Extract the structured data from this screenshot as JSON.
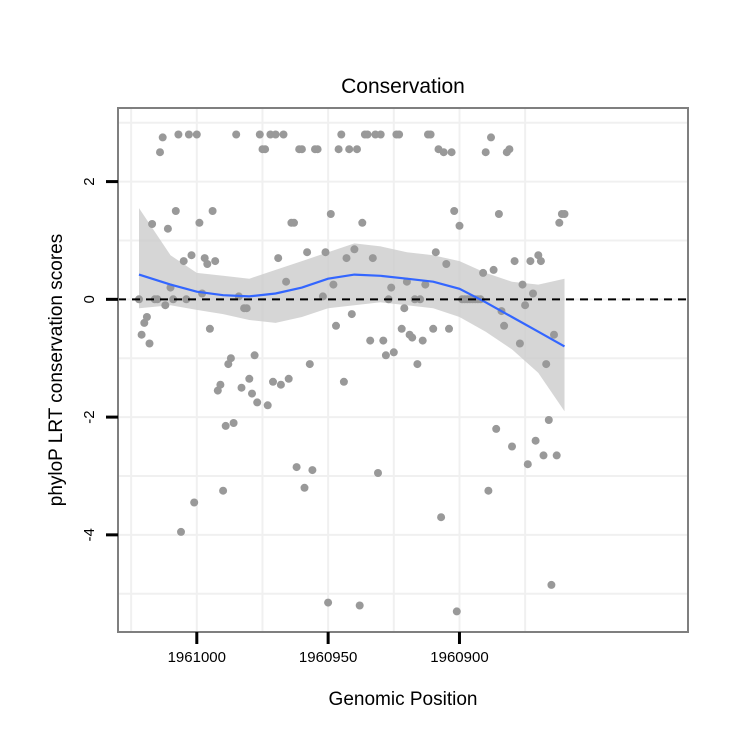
{
  "chart_data": {
    "type": "scatter",
    "title": "Conservation",
    "xlabel": "Genomic Position",
    "ylabel": "phyloP LRT conservation scores",
    "x_reversed": true,
    "xlim": [
      1961030,
      1960813
    ],
    "ylim": [
      -5.65,
      3.25
    ],
    "xticks": [
      1961000,
      1960950,
      1960900
    ],
    "xtick_labels": [
      "1961000",
      "1960950",
      "1960900"
    ],
    "yticks": [
      2,
      0,
      -2,
      -4
    ],
    "ytick_labels": [
      "2",
      "0",
      "-2",
      "-4"
    ],
    "grid": true,
    "legend": "none",
    "reference_line": {
      "y": 0,
      "style": "dashed",
      "color": "#000000"
    },
    "colors": {
      "points": "#999999",
      "smooth_line": "#3366ff",
      "confidence_band": "#cccccc",
      "panel_border": "#7f7f7f",
      "grid": "#f0f0f0"
    },
    "points": [
      {
        "x": 1961022,
        "y": 0.0
      },
      {
        "x": 1961021,
        "y": -0.6
      },
      {
        "x": 1961020,
        "y": -0.4
      },
      {
        "x": 1961019,
        "y": -0.3
      },
      {
        "x": 1961018,
        "y": -0.75
      },
      {
        "x": 1961017,
        "y": 1.28
      },
      {
        "x": 1961016,
        "y": 0.0
      },
      {
        "x": 1961015,
        "y": 0.0
      },
      {
        "x": 1961014,
        "y": 2.5
      },
      {
        "x": 1961013,
        "y": 2.75
      },
      {
        "x": 1961012,
        "y": -0.1
      },
      {
        "x": 1961011,
        "y": 1.2
      },
      {
        "x": 1961010,
        "y": 0.2
      },
      {
        "x": 1961009,
        "y": 0.0
      },
      {
        "x": 1961008,
        "y": 1.5
      },
      {
        "x": 1961007,
        "y": 2.8
      },
      {
        "x": 1961006,
        "y": -3.95
      },
      {
        "x": 1961005,
        "y": 0.65
      },
      {
        "x": 1961004,
        "y": 0.0
      },
      {
        "x": 1961003,
        "y": 2.8
      },
      {
        "x": 1961002,
        "y": 0.75
      },
      {
        "x": 1961001,
        "y": -3.45
      },
      {
        "x": 1961000,
        "y": 2.8
      },
      {
        "x": 1960999,
        "y": 1.3
      },
      {
        "x": 1960998,
        "y": 0.1
      },
      {
        "x": 1960997,
        "y": 0.7
      },
      {
        "x": 1960996,
        "y": 0.6
      },
      {
        "x": 1960995,
        "y": -0.5
      },
      {
        "x": 1960994,
        "y": 1.5
      },
      {
        "x": 1960993,
        "y": 0.65
      },
      {
        "x": 1960992,
        "y": -1.55
      },
      {
        "x": 1960991,
        "y": -1.45
      },
      {
        "x": 1960990,
        "y": -3.25
      },
      {
        "x": 1960989,
        "y": -2.15
      },
      {
        "x": 1960988,
        "y": -1.1
      },
      {
        "x": 1960987,
        "y": -1.0
      },
      {
        "x": 1960986,
        "y": -2.1
      },
      {
        "x": 1960985,
        "y": 2.8
      },
      {
        "x": 1960984,
        "y": 0.05
      },
      {
        "x": 1960983,
        "y": -1.5
      },
      {
        "x": 1960982,
        "y": -0.15
      },
      {
        "x": 1960981,
        "y": -0.15
      },
      {
        "x": 1960980,
        "y": -1.35
      },
      {
        "x": 1960979,
        "y": -1.6
      },
      {
        "x": 1960978,
        "y": -0.95
      },
      {
        "x": 1960977,
        "y": -1.75
      },
      {
        "x": 1960976,
        "y": 2.8
      },
      {
        "x": 1960975,
        "y": 2.55
      },
      {
        "x": 1960974,
        "y": 2.55
      },
      {
        "x": 1960973,
        "y": -1.8
      },
      {
        "x": 1960972,
        "y": 2.8
      },
      {
        "x": 1960971,
        "y": -1.4
      },
      {
        "x": 1960970,
        "y": 2.8
      },
      {
        "x": 1960969,
        "y": 0.7
      },
      {
        "x": 1960968,
        "y": -1.45
      },
      {
        "x": 1960967,
        "y": 2.8
      },
      {
        "x": 1960966,
        "y": 0.3
      },
      {
        "x": 1960965,
        "y": -1.35
      },
      {
        "x": 1960964,
        "y": 1.3
      },
      {
        "x": 1960963,
        "y": 1.3
      },
      {
        "x": 1960962,
        "y": -2.85
      },
      {
        "x": 1960961,
        "y": 2.55
      },
      {
        "x": 1960960,
        "y": 2.55
      },
      {
        "x": 1960959,
        "y": -3.2
      },
      {
        "x": 1960958,
        "y": 0.8
      },
      {
        "x": 1960957,
        "y": -1.1
      },
      {
        "x": 1960956,
        "y": -2.9
      },
      {
        "x": 1960955,
        "y": 2.55
      },
      {
        "x": 1960954,
        "y": 2.55
      },
      {
        "x": 1960952,
        "y": 0.05
      },
      {
        "x": 1960951,
        "y": 0.8
      },
      {
        "x": 1960950,
        "y": -5.15
      },
      {
        "x": 1960949,
        "y": 1.45
      },
      {
        "x": 1960948,
        "y": 0.25
      },
      {
        "x": 1960947,
        "y": -0.45
      },
      {
        "x": 1960946,
        "y": 2.55
      },
      {
        "x": 1960945,
        "y": 2.8
      },
      {
        "x": 1960944,
        "y": -1.4
      },
      {
        "x": 1960943,
        "y": 0.7
      },
      {
        "x": 1960942,
        "y": 2.55
      },
      {
        "x": 1960941,
        "y": -0.25
      },
      {
        "x": 1960940,
        "y": 0.85
      },
      {
        "x": 1960939,
        "y": 2.55
      },
      {
        "x": 1960938,
        "y": -5.2
      },
      {
        "x": 1960937,
        "y": 1.3
      },
      {
        "x": 1960936,
        "y": 2.8
      },
      {
        "x": 1960935,
        "y": 2.8
      },
      {
        "x": 1960934,
        "y": -0.7
      },
      {
        "x": 1960933,
        "y": 0.7
      },
      {
        "x": 1960932,
        "y": 2.8
      },
      {
        "x": 1960931,
        "y": -2.95
      },
      {
        "x": 1960930,
        "y": 2.8
      },
      {
        "x": 1960929,
        "y": -0.7
      },
      {
        "x": 1960928,
        "y": -0.95
      },
      {
        "x": 1960927,
        "y": 0.0
      },
      {
        "x": 1960926,
        "y": 0.2
      },
      {
        "x": 1960925,
        "y": -0.9
      },
      {
        "x": 1960924,
        "y": 2.8
      },
      {
        "x": 1960923,
        "y": 2.8
      },
      {
        "x": 1960922,
        "y": -0.5
      },
      {
        "x": 1960921,
        "y": -0.15
      },
      {
        "x": 1960920,
        "y": 0.3
      },
      {
        "x": 1960919,
        "y": -0.6
      },
      {
        "x": 1960918,
        "y": -0.65
      },
      {
        "x": 1960917,
        "y": 0.0
      },
      {
        "x": 1960916,
        "y": -1.1
      },
      {
        "x": 1960915,
        "y": 0.0
      },
      {
        "x": 1960914,
        "y": -0.7
      },
      {
        "x": 1960913,
        "y": 0.25
      },
      {
        "x": 1960912,
        "y": 2.8
      },
      {
        "x": 1960911,
        "y": 2.8
      },
      {
        "x": 1960910,
        "y": -0.5
      },
      {
        "x": 1960909,
        "y": 0.8
      },
      {
        "x": 1960908,
        "y": 2.55
      },
      {
        "x": 1960907,
        "y": -3.7
      },
      {
        "x": 1960906,
        "y": 2.5
      },
      {
        "x": 1960905,
        "y": 0.6
      },
      {
        "x": 1960904,
        "y": -0.5
      },
      {
        "x": 1960903,
        "y": 2.5
      },
      {
        "x": 1960902,
        "y": 1.5
      },
      {
        "x": 1960901,
        "y": -5.3
      },
      {
        "x": 1960900,
        "y": 1.25
      },
      {
        "x": 1960899,
        "y": 0.0
      },
      {
        "x": 1960898,
        "y": 0.0
      },
      {
        "x": 1960897,
        "y": 0.0
      },
      {
        "x": 1960896,
        "y": 0.0
      },
      {
        "x": 1960895,
        "y": 0.0
      },
      {
        "x": 1960894,
        "y": 0.0
      },
      {
        "x": 1960893,
        "y": 0.0
      },
      {
        "x": 1960892,
        "y": 0.0
      },
      {
        "x": 1960891,
        "y": 0.45
      },
      {
        "x": 1960890,
        "y": 2.5
      },
      {
        "x": 1960889,
        "y": -3.25
      },
      {
        "x": 1960888,
        "y": 2.75
      },
      {
        "x": 1960887,
        "y": 0.5
      },
      {
        "x": 1960886,
        "y": -2.2
      },
      {
        "x": 1960885,
        "y": 1.45
      },
      {
        "x": 1960884,
        "y": -0.2
      },
      {
        "x": 1960883,
        "y": -0.45
      },
      {
        "x": 1960882,
        "y": 2.5
      },
      {
        "x": 1960881,
        "y": 2.55
      },
      {
        "x": 1960880,
        "y": -2.5
      },
      {
        "x": 1960879,
        "y": 0.65
      },
      {
        "x": 1960877,
        "y": -0.75
      },
      {
        "x": 1960876,
        "y": 0.25
      },
      {
        "x": 1960875,
        "y": -0.1
      },
      {
        "x": 1960874,
        "y": -2.8
      },
      {
        "x": 1960873,
        "y": 0.65
      },
      {
        "x": 1960872,
        "y": 0.1
      },
      {
        "x": 1960871,
        "y": -2.4
      },
      {
        "x": 1960870,
        "y": 0.75
      },
      {
        "x": 1960869,
        "y": 0.65
      },
      {
        "x": 1960868,
        "y": -2.65
      },
      {
        "x": 1960867,
        "y": -1.1
      },
      {
        "x": 1960866,
        "y": -2.05
      },
      {
        "x": 1960865,
        "y": -4.85
      },
      {
        "x": 1960864,
        "y": -0.6
      },
      {
        "x": 1960863,
        "y": -2.65
      },
      {
        "x": 1960862,
        "y": 1.3
      },
      {
        "x": 1960861,
        "y": 1.45
      },
      {
        "x": 1960860,
        "y": 1.45
      }
    ],
    "smooth": {
      "x": [
        1961022,
        1961010,
        1961000,
        1960990,
        1960980,
        1960970,
        1960960,
        1960950,
        1960940,
        1960930,
        1960920,
        1960910,
        1960900,
        1960890,
        1960880,
        1960870,
        1960860
      ],
      "y": [
        0.42,
        0.25,
        0.13,
        0.07,
        0.05,
        0.1,
        0.2,
        0.35,
        0.42,
        0.4,
        0.35,
        0.3,
        0.18,
        -0.05,
        -0.3,
        -0.55,
        -0.8
      ],
      "lower": [
        -0.15,
        -0.1,
        -0.18,
        -0.25,
        -0.35,
        -0.4,
        -0.3,
        -0.15,
        -0.1,
        -0.05,
        -0.1,
        -0.15,
        -0.3,
        -0.55,
        -0.85,
        -1.25,
        -1.9
      ],
      "upper": [
        1.55,
        0.75,
        0.45,
        0.4,
        0.35,
        0.5,
        0.65,
        0.8,
        0.95,
        0.9,
        0.8,
        0.75,
        0.65,
        0.45,
        0.3,
        0.25,
        0.35
      ]
    }
  }
}
